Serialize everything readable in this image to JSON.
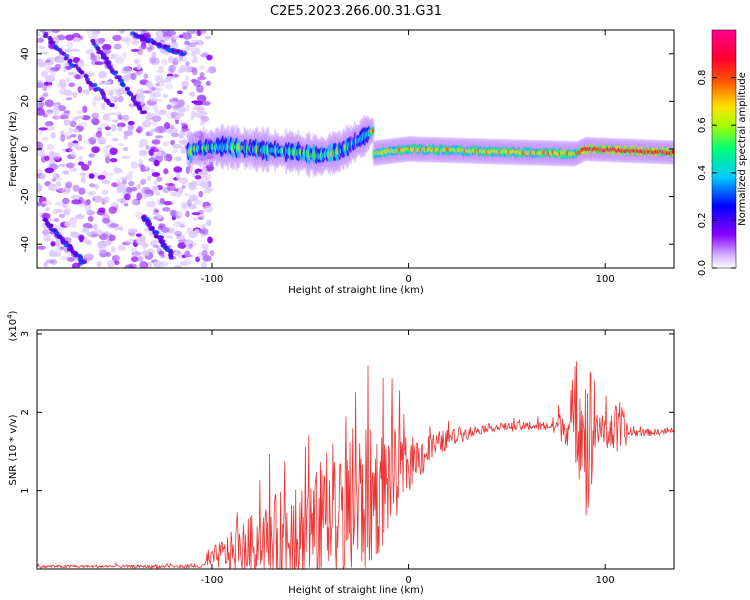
{
  "figure_title": "C2E5.2023.266.00.31.G31",
  "chart_data": [
    {
      "type": "heatmap",
      "name": "spectrogram",
      "xlabel": "Height of straight line (km)",
      "ylabel": "Frequency (Hz)",
      "xlim": [
        -189,
        135
      ],
      "ylim": [
        -50,
        50
      ],
      "x_ticks": [
        -100,
        0,
        100
      ],
      "x_tick_labels": [
        "-100",
        "0",
        "100"
      ],
      "y_ticks": [
        -40,
        -20,
        0,
        20,
        40
      ],
      "y_tick_labels": [
        "-40",
        "-20",
        "0",
        "20",
        "40"
      ],
      "colorbar": {
        "label": "Normalized spectral amplitude",
        "range": [
          0,
          1
        ],
        "ticks": [
          0.0,
          0.2,
          0.4,
          0.6,
          0.8
        ],
        "tick_labels": [
          "0.0",
          "0.2",
          "0.4",
          "0.6",
          "0.8"
        ],
        "colors": [
          "#ffffff",
          "#8a00ff",
          "#0000ff",
          "#00c8ff",
          "#00ff7a",
          "#a8ff00",
          "#ffe000",
          "#ff5a00",
          "#ff0030",
          "#ff0090"
        ]
      },
      "description_points": {
        "noise_region_x": [
          -189,
          -105
        ],
        "signal_centerline": [
          [
            -110,
            0
          ],
          [
            -95,
            1
          ],
          [
            -80,
            0
          ],
          [
            -60,
            -1
          ],
          [
            -45,
            -3
          ],
          [
            -35,
            -1
          ],
          [
            -25,
            4
          ],
          [
            -18,
            8
          ],
          [
            -20,
            -2
          ],
          [
            0,
            0
          ],
          [
            40,
            -1
          ],
          [
            85,
            -2
          ],
          [
            90,
            0
          ],
          [
            135,
            -1.5
          ]
        ],
        "stripes": [
          [
            [
              -185,
              48
            ],
            [
              -150,
              18
            ]
          ],
          [
            [
              -160,
              45
            ],
            [
              -135,
              15
            ]
          ],
          [
            [
              -140,
              48
            ],
            [
              -115,
              40
            ]
          ],
          [
            [
              -185,
              -30
            ],
            [
              -165,
              -48
            ]
          ],
          [
            [
              -135,
              -28
            ],
            [
              -120,
              -45
            ]
          ]
        ]
      }
    },
    {
      "type": "line",
      "name": "snr",
      "xlabel": "Height of straight line (km)",
      "ylabel": "SNR (10 * v/v)",
      "y_scale_label": "(x10",
      "y_scale_exp": "4",
      "xlim": [
        -189,
        135
      ],
      "ylim": [
        0,
        3.05
      ],
      "x_ticks": [
        -100,
        0,
        100
      ],
      "x_tick_labels": [
        "-100",
        "0",
        "100"
      ],
      "y_ticks": [
        1,
        2,
        3
      ],
      "y_tick_labels": [
        "1",
        "2",
        "3"
      ],
      "color": "#ee3333",
      "envelope": [
        {
          "x": -189,
          "base": 0.03,
          "noise": 0.02
        },
        {
          "x": -105,
          "base": 0.03,
          "noise": 0.02
        },
        {
          "x": -98,
          "base": 0.15,
          "noise": 0.15
        },
        {
          "x": -80,
          "base": 0.25,
          "noise": 0.4
        },
        {
          "x": -60,
          "base": 0.35,
          "noise": 0.7
        },
        {
          "x": -40,
          "base": 0.45,
          "noise": 0.8
        },
        {
          "x": -25,
          "base": 0.7,
          "noise": 1.0
        },
        {
          "x": -15,
          "base": 0.9,
          "noise": 0.8
        },
        {
          "x": 0,
          "base": 1.3,
          "noise": 0.35
        },
        {
          "x": 20,
          "base": 1.65,
          "noise": 0.12
        },
        {
          "x": 40,
          "base": 1.8,
          "noise": 0.05
        },
        {
          "x": 70,
          "base": 1.82,
          "noise": 0.06
        },
        {
          "x": 84,
          "base": 1.78,
          "noise": 0.3
        },
        {
          "x": 88,
          "base": 1.7,
          "noise": 0.9
        },
        {
          "x": 92,
          "base": 1.5,
          "noise": 1.2
        },
        {
          "x": 96,
          "base": 1.75,
          "noise": 0.15
        },
        {
          "x": 108,
          "base": 1.72,
          "noise": 0.4
        },
        {
          "x": 112,
          "base": 1.73,
          "noise": 0.05
        },
        {
          "x": 135,
          "base": 1.75,
          "noise": 0.04
        }
      ]
    }
  ]
}
